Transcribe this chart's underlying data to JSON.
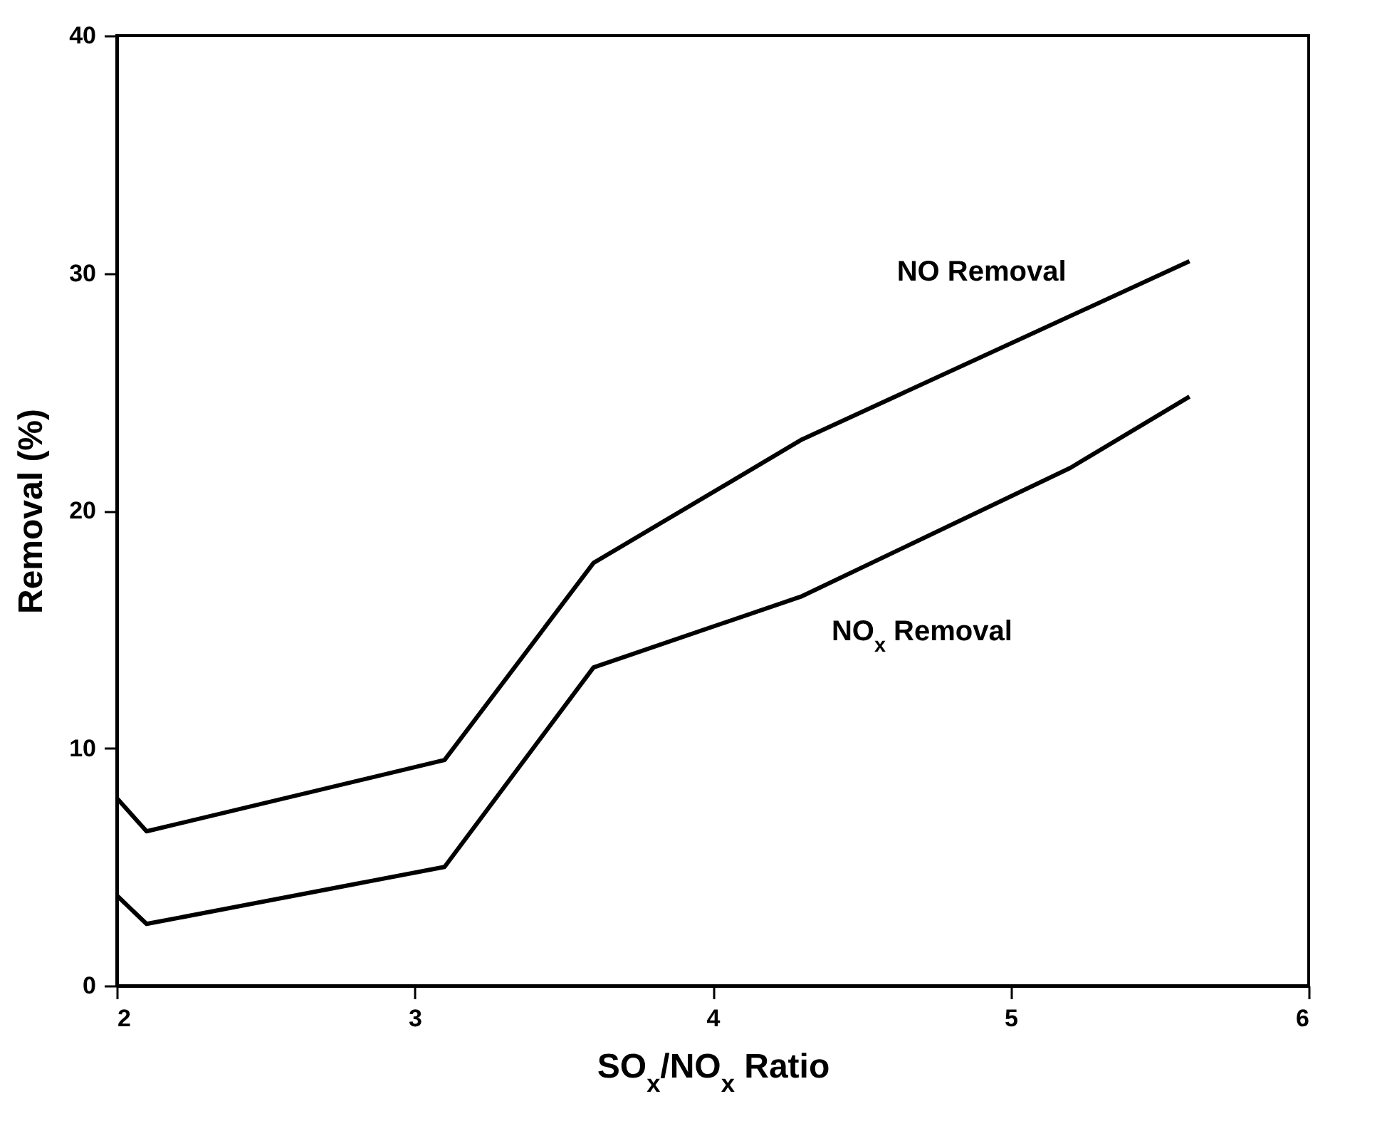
{
  "chart_data": {
    "type": "line",
    "xlabel": "SO$_{x}$/NO$_{x}$ Ratio",
    "ylabel": "Removal (%)",
    "xlim": [
      2,
      6
    ],
    "xticks": [
      2,
      3,
      4,
      5,
      6
    ],
    "ylim": [
      0,
      40
    ],
    "yticks": [
      0,
      10,
      20,
      30,
      40
    ],
    "grid": false,
    "legend": false,
    "marker": "none",
    "line_style": "solid",
    "x": [
      2,
      2.1,
      3.1,
      3.6,
      4.3,
      5.6
    ],
    "series": [
      {
        "name": "NO Removal",
        "color": "#000000",
        "values": [
          7.9,
          6.5,
          9.5,
          17.8,
          23.0,
          30.5
        ]
      },
      {
        "name": "NO$_{x}$ Removal",
        "color": "#000000",
        "x": [
          2,
          2.1,
          3.1,
          3.6,
          4.3,
          5.2,
          5.6
        ],
        "values": [
          3.8,
          2.6,
          5.0,
          13.4,
          16.4,
          21.8,
          24.8
        ]
      }
    ]
  }
}
